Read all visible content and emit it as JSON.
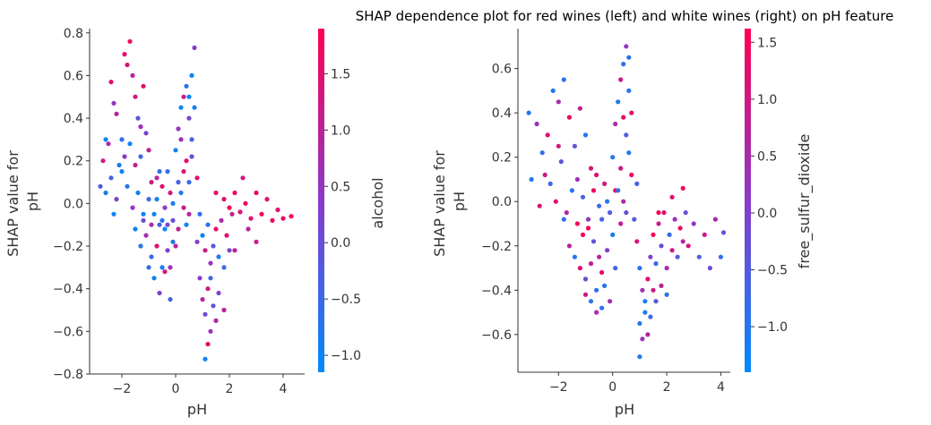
{
  "title": "SHAP dependence plot for red wines (left) and white wines (right) on pH feature",
  "colors": {
    "low": "#008bfb",
    "mid": "#8a3ac9",
    "high": "#ff0051",
    "axis": "#333333"
  },
  "chart_data": [
    {
      "type": "scatter",
      "name": "red wines",
      "xlabel": "pH",
      "ylabel": "SHAP value for\npH",
      "xlim": [
        -3.2,
        4.8
      ],
      "ylim": [
        -0.8,
        0.82
      ],
      "xticks": [
        -2,
        0,
        2,
        4
      ],
      "xtick_labels": [
        "−2",
        "0",
        "2",
        "4"
      ],
      "yticks": [
        -0.8,
        -0.6,
        -0.4,
        -0.2,
        0.0,
        0.2,
        0.4,
        0.6,
        0.8
      ],
      "ytick_labels": [
        "−0.8",
        "−0.6",
        "−0.4",
        "−0.2",
        "0.0",
        "0.2",
        "0.4",
        "0.6",
        "0.8"
      ],
      "color_feature": "alcohol",
      "colorbar_range": [
        -1.15,
        1.9
      ],
      "colorbar_ticks": [
        -1.0,
        -0.5,
        0.0,
        0.5,
        1.0,
        1.5
      ],
      "colorbar_tick_labels": [
        "−1.0",
        "−0.5",
        "0.0",
        "0.5",
        "1.0",
        "1.5"
      ],
      "points": [
        [
          -2.8,
          0.08,
          -0.3
        ],
        [
          -2.7,
          0.2,
          1.2
        ],
        [
          -2.6,
          0.3,
          -1.0
        ],
        [
          -2.5,
          0.28,
          0.8
        ],
        [
          -2.4,
          0.57,
          1.5
        ],
        [
          -2.3,
          0.47,
          0.5
        ],
        [
          -2.2,
          0.42,
          1.0
        ],
        [
          -2.0,
          0.3,
          -0.6
        ],
        [
          -1.9,
          0.7,
          1.6
        ],
        [
          -1.8,
          0.65,
          1.4
        ],
        [
          -1.7,
          0.76,
          1.7
        ],
        [
          -1.6,
          0.6,
          0.9
        ],
        [
          -1.5,
          0.5,
          1.3
        ],
        [
          -1.4,
          0.4,
          -0.2
        ],
        [
          -1.3,
          0.36,
          0.6
        ],
        [
          -1.2,
          0.55,
          1.5
        ],
        [
          -1.1,
          0.33,
          0.2
        ],
        [
          -1.0,
          0.25,
          1.1
        ],
        [
          -2.6,
          0.05,
          -0.8
        ],
        [
          -2.4,
          0.12,
          -0.4
        ],
        [
          -2.2,
          0.02,
          0.3
        ],
        [
          -2.0,
          0.15,
          -1.0
        ],
        [
          -1.8,
          0.08,
          -0.7
        ],
        [
          -1.6,
          -0.02,
          0.5
        ],
        [
          -1.4,
          0.05,
          -0.9
        ],
        [
          -1.2,
          -0.08,
          0.1
        ],
        [
          -1.0,
          0.02,
          -0.5
        ],
        [
          -0.9,
          0.1,
          1.2
        ],
        [
          -0.8,
          -0.05,
          -1.0
        ],
        [
          -0.7,
          0.12,
          0.9
        ],
        [
          -0.6,
          -0.1,
          -0.3
        ],
        [
          -0.5,
          0.08,
          1.5
        ],
        [
          -0.4,
          -0.02,
          0.4
        ],
        [
          -0.3,
          0.15,
          -0.6
        ],
        [
          -0.2,
          0.05,
          1.3
        ],
        [
          -0.1,
          -0.08,
          0.0
        ],
        [
          -1.5,
          -0.12,
          -1.0
        ],
        [
          -1.3,
          -0.2,
          -0.8
        ],
        [
          -1.1,
          -0.15,
          0.7
        ],
        [
          -0.9,
          -0.25,
          -0.5
        ],
        [
          -0.7,
          -0.2,
          1.6
        ],
        [
          -0.5,
          -0.3,
          -0.9
        ],
        [
          -0.3,
          -0.22,
          0.3
        ],
        [
          -0.1,
          -0.18,
          -0.7
        ],
        [
          0.1,
          -0.12,
          1.1
        ],
        [
          -0.8,
          -0.35,
          -1.0
        ],
        [
          -0.6,
          -0.42,
          0.2
        ],
        [
          -0.4,
          -0.32,
          1.4
        ],
        [
          -0.2,
          -0.45,
          -0.4
        ],
        [
          -1.0,
          -0.3,
          -0.6
        ],
        [
          -1.2,
          -0.05,
          -1.0
        ],
        [
          -0.9,
          -0.1,
          0.8
        ],
        [
          -0.4,
          -0.12,
          -1.1
        ],
        [
          -0.2,
          -0.3,
          0.6
        ],
        [
          0.0,
          0.25,
          -0.9
        ],
        [
          0.1,
          0.35,
          0.5
        ],
        [
          0.2,
          0.45,
          -1.0
        ],
        [
          0.3,
          0.5,
          1.2
        ],
        [
          0.4,
          0.55,
          -0.7
        ],
        [
          0.5,
          0.4,
          0.1
        ],
        [
          0.4,
          0.2,
          1.6
        ],
        [
          0.5,
          0.1,
          -0.5
        ],
        [
          0.6,
          0.6,
          -1.0
        ],
        [
          0.7,
          0.73,
          0.4
        ],
        [
          0.6,
          0.3,
          -0.3
        ],
        [
          0.3,
          0.15,
          1.4
        ],
        [
          0.2,
          0.05,
          -0.8
        ],
        [
          0.5,
          -0.05,
          0.9
        ],
        [
          0.4,
          -0.1,
          -1.0
        ],
        [
          0.6,
          0.22,
          0.0
        ],
        [
          0.7,
          0.45,
          -0.9
        ],
        [
          0.3,
          -0.02,
          1.1
        ],
        [
          0.1,
          0.1,
          -0.4
        ],
        [
          0.2,
          0.3,
          0.7
        ],
        [
          0.5,
          0.5,
          -1.1
        ],
        [
          0.8,
          0.12,
          1.5
        ],
        [
          0.9,
          -0.05,
          -0.6
        ],
        [
          0.8,
          -0.18,
          0.3
        ],
        [
          1.0,
          -0.15,
          -1.0
        ],
        [
          1.1,
          -0.22,
          1.2
        ],
        [
          1.2,
          -0.1,
          -0.7
        ],
        [
          1.3,
          -0.28,
          0.5
        ],
        [
          1.4,
          -0.2,
          -0.2
        ],
        [
          1.5,
          -0.12,
          1.6
        ],
        [
          1.6,
          -0.25,
          -0.9
        ],
        [
          1.7,
          -0.08,
          0.8
        ],
        [
          1.8,
          -0.3,
          -0.5
        ],
        [
          1.9,
          -0.15,
          1.4
        ],
        [
          2.0,
          -0.22,
          0.2
        ],
        [
          2.1,
          -0.05,
          1.1
        ],
        [
          0.9,
          -0.35,
          0.4
        ],
        [
          1.0,
          -0.45,
          0.9
        ],
        [
          1.1,
          -0.52,
          0.1
        ],
        [
          1.2,
          -0.4,
          1.3
        ],
        [
          1.3,
          -0.6,
          0.6
        ],
        [
          1.4,
          -0.48,
          -0.1
        ],
        [
          1.5,
          -0.55,
          0.8
        ],
        [
          1.2,
          -0.66,
          1.5
        ],
        [
          1.1,
          -0.73,
          -1.0
        ],
        [
          1.6,
          -0.42,
          0.2
        ],
        [
          1.8,
          -0.5,
          1.0
        ],
        [
          1.3,
          -0.35,
          -0.4
        ],
        [
          1.5,
          0.05,
          1.7
        ],
        [
          1.8,
          0.02,
          1.5
        ],
        [
          2.0,
          -0.02,
          1.8
        ],
        [
          2.2,
          0.05,
          1.6
        ],
        [
          2.4,
          -0.04,
          1.4
        ],
        [
          2.6,
          0.0,
          1.7
        ],
        [
          2.8,
          -0.07,
          1.5
        ],
        [
          3.0,
          0.05,
          1.6
        ],
        [
          3.2,
          -0.05,
          1.8
        ],
        [
          3.4,
          0.02,
          1.4
        ],
        [
          3.6,
          -0.08,
          1.7
        ],
        [
          3.8,
          -0.03,
          1.5
        ],
        [
          4.0,
          -0.07,
          1.6
        ],
        [
          4.3,
          -0.06,
          1.8
        ],
        [
          2.5,
          0.12,
          1.3
        ],
        [
          2.7,
          -0.12,
          0.9
        ],
        [
          3.0,
          -0.18,
          1.2
        ],
        [
          2.2,
          -0.22,
          1.0
        ],
        [
          -0.7,
          0.02,
          -1.0
        ],
        [
          -0.5,
          -0.08,
          -0.8
        ],
        [
          -0.3,
          -0.1,
          0.2
        ],
        [
          -0.1,
          0.0,
          -0.9
        ],
        [
          0.0,
          -0.2,
          1.0
        ],
        [
          -0.6,
          0.15,
          -0.6
        ],
        [
          -1.7,
          0.28,
          -1.0
        ],
        [
          -1.9,
          0.22,
          0.4
        ],
        [
          -2.1,
          0.18,
          -0.8
        ],
        [
          -1.5,
          0.18,
          1.1
        ],
        [
          -1.3,
          0.22,
          -0.5
        ],
        [
          -2.3,
          -0.05,
          -1.0
        ]
      ]
    },
    {
      "type": "scatter",
      "name": "white wines",
      "xlabel": "pH",
      "ylabel": "SHAP value for\npH",
      "xlim": [
        -3.5,
        4.35
      ],
      "ylim": [
        -0.77,
        0.78
      ],
      "xticks": [
        -2,
        0,
        2,
        4
      ],
      "xtick_labels": [
        "−2",
        "0",
        "2",
        "4"
      ],
      "yticks": [
        -0.6,
        -0.4,
        -0.2,
        0.0,
        0.2,
        0.4,
        0.6
      ],
      "ytick_labels": [
        "−0.6",
        "−0.4",
        "−0.2",
        "0.0",
        "0.2",
        "0.4",
        "0.6"
      ],
      "color_feature": "free_sulfur_dioxide",
      "colorbar_range": [
        -1.4,
        1.62
      ],
      "colorbar_ticks": [
        -1.0,
        -0.5,
        0.0,
        0.5,
        1.0,
        1.5
      ],
      "colorbar_tick_labels": [
        "−1.0",
        "−0.5",
        "0.0",
        "0.5",
        "1.0",
        "1.5"
      ],
      "points": [
        [
          -3.1,
          0.4,
          -1.0
        ],
        [
          -2.8,
          0.35,
          0.3
        ],
        [
          -2.6,
          0.22,
          -0.8
        ],
        [
          -2.4,
          0.3,
          1.2
        ],
        [
          -2.2,
          0.5,
          -1.1
        ],
        [
          -2.0,
          0.45,
          0.5
        ],
        [
          -1.8,
          0.55,
          -0.9
        ],
        [
          -1.6,
          0.38,
          1.4
        ],
        [
          -1.4,
          0.25,
          -0.3
        ],
        [
          -1.2,
          0.42,
          0.8
        ],
        [
          -1.0,
          0.3,
          -1.0
        ],
        [
          -0.8,
          0.15,
          1.1
        ],
        [
          -2.5,
          0.12,
          0.9
        ],
        [
          -2.3,
          0.08,
          -0.7
        ],
        [
          -2.1,
          0.0,
          1.3
        ],
        [
          -1.9,
          0.18,
          -0.4
        ],
        [
          -1.7,
          -0.05,
          0.6
        ],
        [
          -1.5,
          0.05,
          -1.0
        ],
        [
          -1.3,
          -0.1,
          1.5
        ],
        [
          -1.1,
          0.02,
          -0.6
        ],
        [
          -0.9,
          -0.08,
          0.2
        ],
        [
          -0.7,
          0.05,
          1.4
        ],
        [
          -0.5,
          -0.02,
          -0.8
        ],
        [
          -0.3,
          0.08,
          1.0
        ],
        [
          -0.1,
          -0.05,
          -0.5
        ],
        [
          -1.6,
          -0.2,
          0.7
        ],
        [
          -1.4,
          -0.25,
          -1.0
        ],
        [
          -1.2,
          -0.3,
          1.2
        ],
        [
          -1.0,
          -0.35,
          -0.2
        ],
        [
          -0.8,
          -0.28,
          0.9
        ],
        [
          -0.6,
          -0.4,
          -0.9
        ],
        [
          -0.4,
          -0.32,
          1.3
        ],
        [
          -0.2,
          -0.22,
          0.0
        ],
        [
          0.0,
          -0.15,
          -1.1
        ],
        [
          -0.9,
          -0.12,
          1.5
        ],
        [
          -0.7,
          -0.18,
          -0.4
        ],
        [
          -0.5,
          -0.25,
          0.6
        ],
        [
          -0.3,
          -0.38,
          -1.0
        ],
        [
          -0.1,
          -0.45,
          0.4
        ],
        [
          0.1,
          -0.3,
          -0.7
        ],
        [
          -1.1,
          -0.15,
          1.6
        ],
        [
          -0.6,
          0.12,
          1.2
        ],
        [
          -0.2,
          0.0,
          -1.0
        ],
        [
          0.1,
          0.05,
          1.5
        ],
        [
          -0.4,
          -0.08,
          -0.6
        ],
        [
          -1.3,
          0.1,
          0.3
        ],
        [
          -1.8,
          -0.08,
          -0.9
        ],
        [
          -2.0,
          0.25,
          1.0
        ],
        [
          0.0,
          0.2,
          -1.0
        ],
        [
          0.1,
          0.35,
          0.5
        ],
        [
          0.2,
          0.45,
          -1.1
        ],
        [
          0.3,
          0.55,
          0.9
        ],
        [
          0.4,
          0.62,
          -0.8
        ],
        [
          0.5,
          0.7,
          0.2
        ],
        [
          0.6,
          0.5,
          -1.0
        ],
        [
          0.7,
          0.4,
          1.3
        ],
        [
          0.5,
          0.3,
          -0.6
        ],
        [
          0.3,
          0.15,
          1.0
        ],
        [
          0.2,
          0.05,
          -0.9
        ],
        [
          0.4,
          0.0,
          0.6
        ],
        [
          0.6,
          0.22,
          -1.1
        ],
        [
          0.7,
          0.12,
          1.5
        ],
        [
          0.5,
          -0.05,
          -0.3
        ],
        [
          0.3,
          -0.1,
          0.8
        ],
        [
          0.6,
          0.65,
          -0.9
        ],
        [
          0.4,
          0.38,
          1.4
        ],
        [
          0.8,
          -0.08,
          -0.5
        ],
        [
          0.9,
          -0.18,
          1.1
        ],
        [
          1.0,
          -0.3,
          -1.0
        ],
        [
          1.1,
          -0.4,
          0.4
        ],
        [
          1.2,
          -0.5,
          -1.1
        ],
        [
          1.3,
          -0.35,
          1.3
        ],
        [
          1.4,
          -0.25,
          0.0
        ],
        [
          1.5,
          -0.15,
          1.5
        ],
        [
          1.6,
          -0.28,
          -0.7
        ],
        [
          1.7,
          -0.1,
          0.9
        ],
        [
          1.8,
          -0.2,
          -0.2
        ],
        [
          1.9,
          -0.05,
          1.2
        ],
        [
          2.0,
          -0.3,
          0.5
        ],
        [
          2.1,
          -0.15,
          -0.8
        ],
        [
          2.2,
          -0.22,
          1.0
        ],
        [
          2.3,
          -0.08,
          0.3
        ],
        [
          2.4,
          -0.25,
          -0.5
        ],
        [
          2.5,
          -0.12,
          1.4
        ],
        [
          2.6,
          -0.18,
          0.7
        ],
        [
          2.7,
          -0.05,
          -0.3
        ],
        [
          2.8,
          -0.2,
          1.1
        ],
        [
          3.0,
          -0.1,
          0.2
        ],
        [
          3.2,
          -0.25,
          -0.6
        ],
        [
          3.4,
          -0.15,
          0.9
        ],
        [
          3.6,
          -0.3,
          -0.2
        ],
        [
          3.8,
          -0.08,
          0.5
        ],
        [
          4.0,
          -0.25,
          -0.9
        ],
        [
          4.1,
          -0.14,
          -0.4
        ],
        [
          1.0,
          -0.55,
          -1.0
        ],
        [
          1.1,
          -0.62,
          0.3
        ],
        [
          1.2,
          -0.45,
          -1.1
        ],
        [
          1.3,
          -0.6,
          0.6
        ],
        [
          1.4,
          -0.52,
          -0.8
        ],
        [
          1.0,
          -0.7,
          -1.0
        ],
        [
          1.5,
          -0.4,
          1.0
        ],
        [
          1.6,
          -0.45,
          -0.4
        ],
        [
          1.8,
          -0.38,
          0.8
        ],
        [
          2.0,
          -0.42,
          -0.9
        ],
        [
          1.7,
          -0.05,
          1.6
        ],
        [
          2.2,
          0.02,
          1.2
        ],
        [
          2.6,
          0.06,
          1.4
        ],
        [
          0.9,
          0.08,
          -0.6
        ],
        [
          -0.8,
          -0.45,
          -1.0
        ],
        [
          -0.6,
          -0.5,
          0.5
        ],
        [
          -1.0,
          -0.42,
          1.0
        ],
        [
          -0.4,
          -0.48,
          -0.9
        ],
        [
          -2.7,
          -0.02,
          1.1
        ],
        [
          -3.0,
          0.1,
          -1.0
        ]
      ]
    }
  ]
}
